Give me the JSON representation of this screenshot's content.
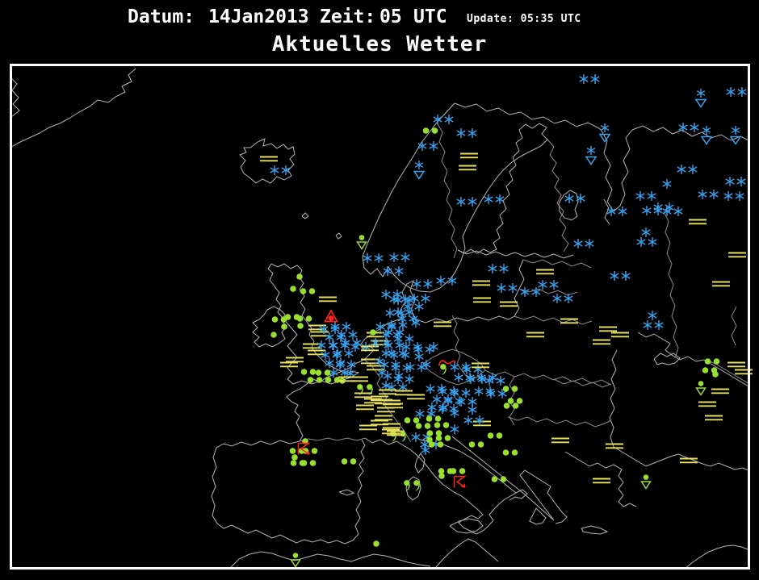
{
  "header": {
    "datum_label": "Datum:",
    "datum_value": "14Jan2013",
    "zeit_label": "Zeit:",
    "zeit_value": "05",
    "zeit_unit": "UTC",
    "update_text": "Update: 05:35 UTC",
    "title": "Aktuelles Wetter"
  },
  "colors": {
    "background": "#000000",
    "frame": "#ffffff",
    "coast": "#b5b5b5",
    "border_line": "#8d8d8d",
    "snow": "#38a3ef",
    "mist": "#e6e05a",
    "rain": "#9ade2f",
    "severe": "#ff2418"
  },
  "symbol_legend": {
    "snow": "snowfall (blue asterisk)",
    "snow2": "moderate snowfall (two blue asterisks)",
    "mist": "mist / fog (yellow double bars)",
    "rain": "rain (green dot)",
    "rain2": "moderate rain (two green dots)",
    "driz": "drizzle (green comma)",
    "driz2": "moderate drizzle (two green commas)",
    "shrain": "rain shower (green dot over triangle)",
    "shsnow": "snow shower (blue asterisk over triangle)",
    "ts": "thunderstorm (red glyph)",
    "frz": "freezing rain (red tilde)",
    "hail": "hail (red triangle with dot)"
  },
  "map": {
    "symbols": [
      [
        "snow2",
        730,
        98
      ],
      [
        "snow2",
        912,
        114
      ],
      [
        "shsnow",
        868,
        122
      ],
      [
        "shsnow",
        749,
        165
      ],
      [
        "snow2",
        853,
        158
      ],
      [
        "shsnow",
        875,
        168
      ],
      [
        "shsnow",
        911,
        168
      ],
      [
        "shsnow",
        732,
        193
      ],
      [
        "snow2",
        851,
        210
      ],
      [
        "snow2",
        911,
        225
      ],
      [
        "snow",
        826,
        228
      ],
      [
        "snow2",
        800,
        243
      ],
      [
        "snow2",
        877,
        241
      ],
      [
        "snow2",
        909,
        243
      ],
      [
        "snow2",
        822,
        257
      ],
      [
        "snow2",
        764,
        262
      ],
      [
        "snow2",
        808,
        261
      ],
      [
        "snow2",
        833,
        262
      ],
      [
        "snow2",
        712,
        246
      ],
      [
        "mist",
        864,
        275
      ],
      [
        "mist",
        913,
        316
      ],
      [
        "mist",
        893,
        352
      ],
      [
        "snow",
        800,
        288
      ],
      [
        "snow2",
        801,
        300
      ],
      [
        "snow2",
        723,
        302
      ],
      [
        "snow2",
        768,
        342
      ],
      [
        "mist",
        675,
        337
      ],
      [
        "snow2",
        679,
        353
      ],
      [
        "snow2",
        628,
        357
      ],
      [
        "snow2",
        657,
        362
      ],
      [
        "snow2",
        697,
        370
      ],
      [
        "mist",
        630,
        377
      ],
      [
        "mist",
        705,
        398
      ],
      [
        "mist",
        753,
        408
      ],
      [
        "mist",
        768,
        415
      ],
      [
        "mist",
        663,
        415
      ],
      [
        "mist",
        745,
        424
      ],
      [
        "snow",
        808,
        391
      ],
      [
        "snow2",
        809,
        403
      ],
      [
        "snow2",
        549,
        148
      ],
      [
        "rain2",
        533,
        162
      ],
      [
        "snow2",
        578,
        165
      ],
      [
        "snow2",
        530,
        181
      ],
      [
        "mist",
        581,
        193
      ],
      [
        "mist",
        579,
        208
      ],
      [
        "shsnow",
        519,
        211
      ],
      [
        "snow2",
        578,
        250
      ],
      [
        "snow2",
        612,
        247
      ],
      [
        "snow2",
        617,
        333
      ],
      [
        "mist",
        596,
        351
      ],
      [
        "snow2",
        553,
        348
      ],
      [
        "mist",
        597,
        372
      ],
      [
        "snow2",
        462,
        320
      ],
      [
        "snow2",
        495,
        319
      ],
      [
        "snow2",
        487,
        336
      ],
      [
        "snow2",
        523,
        352
      ],
      [
        "snow2",
        520,
        370
      ],
      [
        "snow2",
        495,
        371
      ],
      [
        "snow2",
        500,
        387
      ],
      [
        "shrain",
        448,
        300
      ],
      [
        "snow2",
        347,
        211
      ],
      [
        "mist",
        333,
        197
      ],
      [
        "mist",
        548,
        402
      ],
      [
        "rain",
        371,
        343
      ],
      [
        "rain",
        363,
        358
      ],
      [
        "rain2",
        381,
        361
      ],
      [
        "mist",
        406,
        371
      ],
      [
        "mist",
        393,
        406
      ],
      [
        "mist",
        396,
        414
      ],
      [
        "mist",
        386,
        429
      ],
      [
        "mist",
        392,
        437
      ],
      [
        "mist",
        365,
        446
      ],
      [
        "mist",
        358,
        452
      ],
      [
        "hail",
        410,
        392
      ],
      [
        "rain2",
        346,
        396
      ],
      [
        "rain2",
        362,
        393
      ],
      [
        "rain2",
        377,
        395
      ],
      [
        "rain",
        352,
        405
      ],
      [
        "rain",
        372,
        404
      ],
      [
        "rain",
        339,
        415
      ],
      [
        "snow2",
        408,
        408
      ],
      [
        "snow2",
        422,
        405
      ],
      [
        "snow2",
        415,
        418
      ],
      [
        "snow2",
        430,
        415
      ],
      [
        "snow2",
        405,
        428
      ],
      [
        "snow2",
        420,
        428
      ],
      [
        "snow2",
        435,
        425
      ],
      [
        "snow2",
        410,
        440
      ],
      [
        "snow2",
        425,
        438
      ],
      [
        "snow2",
        415,
        450
      ],
      [
        "snow2",
        428,
        452
      ],
      [
        "snow",
        440,
        430
      ],
      [
        "snow2",
        420,
        462
      ],
      [
        "snow",
        434,
        463
      ],
      [
        "snow",
        453,
        430
      ],
      [
        "rain2",
        382,
        461
      ],
      [
        "rain2",
        400,
        462
      ],
      [
        "rain2",
        390,
        471
      ],
      [
        "rain2",
        412,
        471
      ],
      [
        "rain",
        424,
        472
      ],
      [
        "driz2",
        452,
        483
      ],
      [
        "snow2",
        485,
        365
      ],
      [
        "snow2",
        500,
        372
      ],
      [
        "snow2",
        512,
        380
      ],
      [
        "snow2",
        490,
        388
      ],
      [
        "snow2",
        505,
        395
      ],
      [
        "snow",
        515,
        400
      ],
      [
        "snow2",
        488,
        412
      ],
      [
        "snow2",
        500,
        420
      ],
      [
        "snow2",
        510,
        430
      ],
      [
        "snow2",
        492,
        438
      ],
      [
        "snow",
        519,
        442
      ],
      [
        "mist",
        465,
        415
      ],
      [
        "mist",
        470,
        425
      ],
      [
        "mist",
        458,
        432
      ],
      [
        "mist",
        458,
        448
      ],
      [
        "mist",
        465,
        456
      ],
      [
        "mist",
        445,
        470
      ],
      [
        "rain",
        462,
        412
      ],
      [
        "snow2",
        478,
        405
      ],
      [
        "snow2",
        492,
        403
      ],
      [
        "snow2",
        485,
        415
      ],
      [
        "snow2",
        472,
        425
      ],
      [
        "snow2",
        488,
        428
      ],
      [
        "snow",
        478,
        438
      ],
      [
        "snow2",
        495,
        440
      ],
      [
        "snow",
        470,
        448
      ],
      [
        "snow2",
        483,
        452
      ],
      [
        "snow2",
        497,
        456
      ],
      [
        "snow",
        473,
        462
      ],
      [
        "snow2",
        487,
        466
      ],
      [
        "snow2",
        500,
        470
      ],
      [
        "snow",
        478,
        478
      ],
      [
        "snow2",
        492,
        480
      ],
      [
        "snow2",
        525,
        433
      ],
      [
        "snow",
        537,
        430
      ],
      [
        "snow2",
        515,
        455
      ],
      [
        "snow",
        528,
        452
      ],
      [
        "frz",
        554,
        450
      ],
      [
        "driz",
        549,
        458
      ],
      [
        "snow2",
        570,
        455
      ],
      [
        "snow2",
        585,
        458
      ],
      [
        "snow2",
        575,
        468
      ],
      [
        "snow2",
        590,
        470
      ],
      [
        "snow2",
        603,
        468
      ],
      [
        "snow2",
        613,
        472
      ],
      [
        "mist",
        595,
        453
      ],
      [
        "snow2",
        540,
        482
      ],
      [
        "snow2",
        555,
        485
      ],
      [
        "snow2",
        570,
        487
      ],
      [
        "snow2",
        548,
        495
      ],
      [
        "snow2",
        562,
        497
      ],
      [
        "snow2",
        578,
        498
      ],
      [
        "snow2",
        555,
        507
      ],
      [
        "snow2",
        542,
        505
      ],
      [
        "snow",
        585,
        508
      ],
      [
        "snow2",
        600,
        485
      ],
      [
        "snow2",
        615,
        488
      ],
      [
        "snow",
        563,
        512
      ],
      [
        "rain2",
        632,
        482
      ],
      [
        "rain2",
        638,
        497
      ],
      [
        "rain2",
        633,
        503
      ],
      [
        "mist",
        597,
        525
      ],
      [
        "snow2",
        527,
        513
      ],
      [
        "snow2",
        522,
        542
      ],
      [
        "snow2",
        533,
        551
      ],
      [
        "snow",
        527,
        558
      ],
      [
        "snow",
        563,
        532
      ],
      [
        "snow2",
        587,
        521
      ],
      [
        "rain2",
        510,
        521
      ],
      [
        "rain2",
        524,
        528
      ],
      [
        "rain2",
        537,
        519
      ],
      [
        "rain2",
        547,
        527
      ],
      [
        "rain2",
        538,
        537
      ],
      [
        "rain2",
        549,
        543
      ],
      [
        "rain2",
        540,
        551
      ],
      [
        "rain",
        532,
        545
      ],
      [
        "driz2",
        493,
        541
      ],
      [
        "mist",
        430,
        470
      ],
      [
        "mist",
        450,
        490
      ],
      [
        "mist",
        462,
        497
      ],
      [
        "mist",
        452,
        505
      ],
      [
        "mist",
        470,
        494
      ],
      [
        "mist",
        485,
        499
      ],
      [
        "mist",
        480,
        486
      ],
      [
        "mist",
        500,
        487
      ],
      [
        "mist",
        515,
        492
      ],
      [
        "mist",
        475,
        498
      ],
      [
        "mist",
        488,
        503
      ],
      [
        "mist",
        478,
        508
      ],
      [
        "mist",
        475,
        518
      ],
      [
        "mist",
        484,
        535
      ],
      [
        "mist",
        456,
        530
      ],
      [
        "mist",
        470,
        524
      ],
      [
        "mist",
        485,
        528
      ],
      [
        "mist",
        490,
        537
      ],
      [
        "rain",
        378,
        547
      ],
      [
        "rain2",
        368,
        559
      ],
      [
        "rain2",
        384,
        559
      ],
      [
        "rain2",
        369,
        574
      ],
      [
        "rain2",
        382,
        574
      ],
      [
        "rain",
        365,
        567
      ],
      [
        "ts",
        377,
        557
      ],
      [
        "rain2",
        432,
        572
      ],
      [
        "rain2",
        552,
        584
      ],
      [
        "rain2",
        567,
        584
      ],
      [
        "rain",
        547,
        590
      ],
      [
        "ts",
        570,
        598
      ],
      [
        "rain2",
        618,
        594
      ],
      [
        "driz2",
        510,
        602
      ],
      [
        "rain2",
        590,
        551
      ],
      [
        "rain2",
        613,
        540
      ],
      [
        "rain2",
        632,
        561
      ],
      [
        "mist",
        694,
        546
      ],
      [
        "mist",
        761,
        553
      ],
      [
        "mist",
        745,
        596
      ],
      [
        "shrain",
        800,
        597
      ],
      [
        "mist",
        853,
        571
      ],
      [
        "mist",
        884,
        518
      ],
      [
        "mist",
        876,
        501
      ],
      [
        "mist",
        892,
        485
      ],
      [
        "mist",
        912,
        452
      ],
      [
        "mist",
        921,
        461
      ],
      [
        "rain2",
        882,
        448
      ],
      [
        "rain2",
        879,
        459
      ],
      [
        "rain",
        886,
        464
      ],
      [
        "shrain",
        868,
        481
      ],
      [
        "rain",
        466,
        674
      ],
      [
        "shrain",
        366,
        694
      ]
    ]
  }
}
